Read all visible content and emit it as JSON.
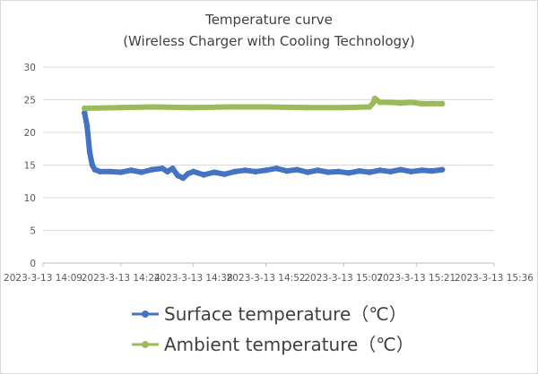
{
  "chart_data": {
    "type": "line",
    "title": "Temperature curve",
    "subtitle": "(Wireless Charger with Cooling Technology)",
    "xlabel": "",
    "ylabel": "",
    "ylim": [
      0,
      30
    ],
    "yticks": [
      "0",
      "5",
      "10",
      "15",
      "20",
      "25",
      "30"
    ],
    "xlim": [
      "2023-3-13 14:09",
      "2023-3-13 15:36"
    ],
    "xticks": [
      "2023-3-13 14:09",
      "2023-3-13 14:24",
      "2023-3-13 14:38",
      "2023-3-13 14:52",
      "2023-3-13 15:07",
      "2023-3-13 15:21",
      "2023-3-13 15:36"
    ],
    "grid": true,
    "legend_position": "bottom",
    "series": [
      {
        "name": "Surface temperature（℃）",
        "color": "#4472c4",
        "points": [
          [
            "2023-3-13 14:17",
            23.0
          ],
          [
            "2023-3-13 14:17:30",
            21.0
          ],
          [
            "2023-3-13 14:18",
            17.0
          ],
          [
            "2023-3-13 14:18:30",
            15.0
          ],
          [
            "2023-3-13 14:19",
            14.3
          ],
          [
            "2023-3-13 14:20",
            14.0
          ],
          [
            "2023-3-13 14:22",
            14.0
          ],
          [
            "2023-3-13 14:24",
            13.9
          ],
          [
            "2023-3-13 14:26",
            14.2
          ],
          [
            "2023-3-13 14:28",
            13.9
          ],
          [
            "2023-3-13 14:30",
            14.3
          ],
          [
            "2023-3-13 14:32",
            14.5
          ],
          [
            "2023-3-13 14:33",
            14.0
          ],
          [
            "2023-3-13 14:34",
            14.5
          ],
          [
            "2023-3-13 14:35",
            13.4
          ],
          [
            "2023-3-13 14:36",
            13.0
          ],
          [
            "2023-3-13 14:37",
            13.7
          ],
          [
            "2023-3-13 14:38",
            14.0
          ],
          [
            "2023-3-13 14:40",
            13.5
          ],
          [
            "2023-3-13 14:42",
            13.9
          ],
          [
            "2023-3-13 14:44",
            13.6
          ],
          [
            "2023-3-13 14:46",
            14.0
          ],
          [
            "2023-3-13 14:48",
            14.2
          ],
          [
            "2023-3-13 14:50",
            14.0
          ],
          [
            "2023-3-13 14:52",
            14.2
          ],
          [
            "2023-3-13 14:54",
            14.5
          ],
          [
            "2023-3-13 14:56",
            14.1
          ],
          [
            "2023-3-13 14:58",
            14.3
          ],
          [
            "2023-3-13 15:00",
            13.9
          ],
          [
            "2023-3-13 15:02",
            14.2
          ],
          [
            "2023-3-13 15:04",
            13.9
          ],
          [
            "2023-3-13 15:06",
            14.0
          ],
          [
            "2023-3-13 15:08",
            13.8
          ],
          [
            "2023-3-13 15:10",
            14.1
          ],
          [
            "2023-3-13 15:12",
            13.9
          ],
          [
            "2023-3-13 15:14",
            14.2
          ],
          [
            "2023-3-13 15:16",
            14.0
          ],
          [
            "2023-3-13 15:18",
            14.3
          ],
          [
            "2023-3-13 15:20",
            14.0
          ],
          [
            "2023-3-13 15:22",
            14.2
          ],
          [
            "2023-3-13 15:24",
            14.1
          ],
          [
            "2023-3-13 15:26",
            14.3
          ]
        ]
      },
      {
        "name": "Ambient temperature（℃）",
        "color": "#9bbb59",
        "points": [
          [
            "2023-3-13 14:17",
            23.7
          ],
          [
            "2023-3-13 14:24",
            23.8
          ],
          [
            "2023-3-13 14:30",
            23.9
          ],
          [
            "2023-3-13 14:38",
            23.8
          ],
          [
            "2023-3-13 14:45",
            23.9
          ],
          [
            "2023-3-13 14:52",
            23.9
          ],
          [
            "2023-3-13 15:00",
            23.8
          ],
          [
            "2023-3-13 15:07",
            23.8
          ],
          [
            "2023-3-13 15:12",
            23.9
          ],
          [
            "2023-3-13 15:12:40",
            24.5
          ],
          [
            "2023-3-13 15:13",
            25.2
          ],
          [
            "2023-3-13 15:14",
            24.6
          ],
          [
            "2023-3-13 15:16",
            24.6
          ],
          [
            "2023-3-13 15:18",
            24.5
          ],
          [
            "2023-3-13 15:20",
            24.6
          ],
          [
            "2023-3-13 15:22",
            24.4
          ],
          [
            "2023-3-13 15:24",
            24.4
          ],
          [
            "2023-3-13 15:26",
            24.4
          ]
        ]
      }
    ]
  }
}
